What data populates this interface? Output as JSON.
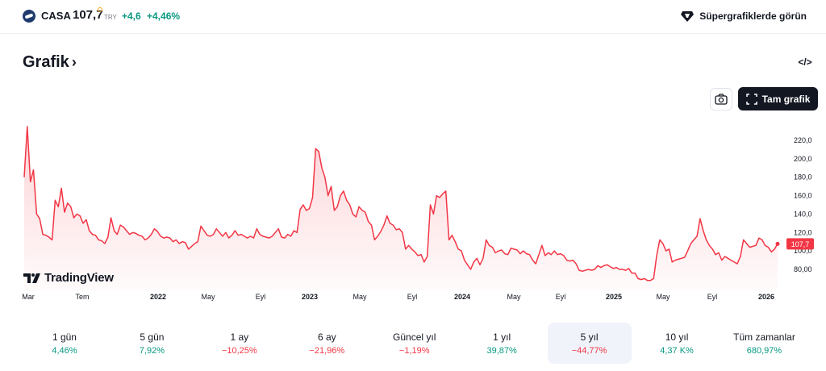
{
  "header": {
    "symbol": "CASA",
    "price": "107,7",
    "currency": "TRY",
    "change": "+4,6",
    "change_pct": "+4,46%",
    "super_link": "Süpergrafiklerde görün"
  },
  "title": "Grafik",
  "buttons": {
    "full_chart": "Tam grafik",
    "embed": "</>"
  },
  "branding": "TradingView",
  "colors": {
    "line": "#f23645",
    "positive": "#089981",
    "negative": "#f23645",
    "dark": "#131722"
  },
  "chart_data": {
    "type": "area",
    "series": [
      {
        "values": [
          180,
          235,
          175,
          188,
          140,
          135,
          118,
          117,
          115,
          112,
          155,
          148,
          168,
          142,
          152,
          148,
          136,
          140,
          138,
          130,
          134,
          122,
          118,
          117,
          112,
          111,
          108,
          115,
          136,
          122,
          118,
          128,
          126,
          122,
          118,
          120,
          119,
          117,
          116,
          112,
          114,
          118,
          124,
          121,
          116,
          114,
          115,
          114,
          110,
          112,
          108,
          110,
          109,
          102,
          105,
          108,
          110,
          127,
          122,
          117,
          116,
          118,
          124,
          120,
          116,
          120,
          114,
          117,
          122,
          117,
          118,
          116,
          114,
          116,
          114,
          124,
          118,
          116,
          115,
          114,
          116,
          120,
          124,
          115,
          114,
          118,
          116,
          122,
          120,
          145,
          150,
          144,
          146,
          158,
          211,
          208,
          190,
          180,
          160,
          170,
          144,
          148,
          160,
          165,
          155,
          150,
          140,
          137,
          148,
          144,
          142,
          132,
          128,
          112,
          116,
          121,
          128,
          138,
          130,
          128,
          123,
          124,
          120,
          102,
          106,
          102,
          99,
          95,
          96,
          88,
          94,
          150,
          140,
          160,
          158,
          162,
          165,
          112,
          117,
          110,
          102,
          100,
          90,
          85,
          80,
          88,
          92,
          85,
          92,
          112,
          106,
          104,
          98,
          100,
          101,
          97,
          96,
          103,
          102,
          101,
          97,
          100,
          97,
          96,
          90,
          86,
          96,
          106,
          95,
          98,
          96,
          100,
          96,
          97,
          95,
          90,
          89,
          90,
          86,
          79,
          78,
          79,
          80,
          79,
          80,
          84,
          82,
          84,
          85,
          83,
          81,
          82,
          80,
          80,
          79,
          81,
          76,
          76,
          70,
          69,
          70,
          68,
          68,
          70,
          95,
          112,
          108,
          100,
          102,
          88,
          90,
          91,
          92,
          93,
          100,
          108,
          112,
          116,
          135,
          122,
          112,
          106,
          102,
          96,
          98,
          90,
          94,
          92,
          90,
          88,
          86,
          94,
          112,
          108,
          104,
          105,
          106,
          114,
          112,
          106,
          104,
          99,
          102,
          107.7
        ]
      }
    ],
    "x_tick_labels": [
      "Mar",
      "Tem",
      "2022",
      "May",
      "Eyl",
      "2023",
      "May",
      "Eyl",
      "2024",
      "May",
      "Eyl",
      "2025",
      "May",
      "Eyl",
      "2026"
    ],
    "y_tick_labels": [
      "80,00",
      "100,0",
      "120,0",
      "140,0",
      "160,0",
      "180,0",
      "200,0",
      "220,0"
    ],
    "ylim": [
      60,
      240
    ],
    "last_value_label": "107,7",
    "grid": false
  },
  "periods": [
    {
      "label": "1 gün",
      "value": "4,46%",
      "trend": "pos"
    },
    {
      "label": "5 gün",
      "value": "7,92%",
      "trend": "pos"
    },
    {
      "label": "1 ay",
      "value": "−10,25%",
      "trend": "neg"
    },
    {
      "label": "6 ay",
      "value": "−21,96%",
      "trend": "neg"
    },
    {
      "label": "Güncel yıl",
      "value": "−1,19%",
      "trend": "neg"
    },
    {
      "label": "1 yıl",
      "value": "39,87%",
      "trend": "pos"
    },
    {
      "label": "5 yıl",
      "value": "−44,77%",
      "trend": "neg",
      "active": true
    },
    {
      "label": "10 yıl",
      "value": "4,37 K%",
      "trend": "pos"
    },
    {
      "label": "Tüm zamanlar",
      "value": "680,97%",
      "trend": "pos"
    }
  ]
}
